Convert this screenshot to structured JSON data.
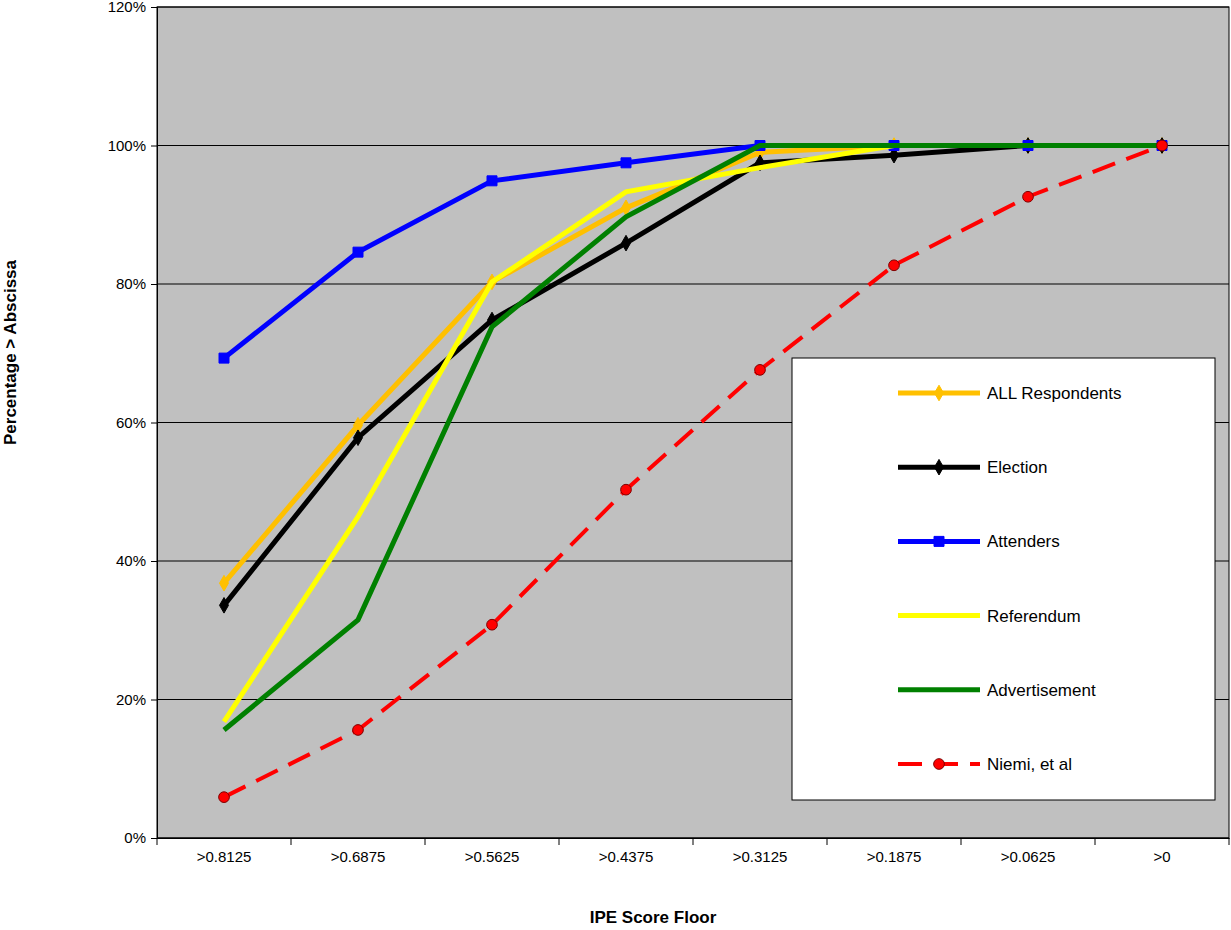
{
  "chart_data": {
    "type": "line",
    "x_label": "IPE Score Floor",
    "y_label": "Percentage > Abscissa",
    "categories": [
      ">0.8125",
      ">0.6875",
      ">0.5625",
      ">0.4375",
      ">0.3125",
      ">0.1875",
      ">0.0625",
      ">0"
    ],
    "series": [
      {
        "name": "ALL Respondents",
        "color": "#FFC000",
        "marker": "diamond",
        "line_style": "solid",
        "values": [
          36.8,
          59.6,
          80.3,
          91,
          99,
          100,
          100,
          100
        ]
      },
      {
        "name": "Election",
        "color": "#000000",
        "marker": "diamond",
        "line_style": "solid",
        "values": [
          33.6,
          57.8,
          74.8,
          85.9,
          97.5,
          98.6,
          100,
          100
        ]
      },
      {
        "name": "Attenders",
        "color": "#0000FF",
        "marker": "square",
        "line_style": "solid",
        "values": [
          69.3,
          84.6,
          94.9,
          97.5,
          100,
          100,
          100,
          100
        ]
      },
      {
        "name": "Referendum",
        "color": "#FFFF00",
        "marker": "none",
        "line_style": "solid",
        "values": [
          16.8,
          46.4,
          80.3,
          93.3,
          96.8,
          100,
          100,
          100
        ]
      },
      {
        "name": "Advertisement",
        "color": "#008000",
        "marker": "none",
        "line_style": "solid",
        "values": [
          15.6,
          31.5,
          73.8,
          89.7,
          100,
          100,
          100,
          100
        ]
      },
      {
        "name": "Niemi, et al",
        "color": "#FF0000",
        "marker": "circle",
        "line_style": "dashed",
        "values": [
          5.9,
          15.6,
          30.8,
          50.3,
          67.6,
          82.7,
          92.6,
          100
        ]
      }
    ],
    "ylim": [
      0,
      120
    ],
    "yticks": [
      {
        "value": 0,
        "label": "0%"
      },
      {
        "value": 20,
        "label": "20%"
      },
      {
        "value": 40,
        "label": "40%"
      },
      {
        "value": 60,
        "label": "60%"
      },
      {
        "value": 80,
        "label": "80%"
      },
      {
        "value": 100,
        "label": "100%"
      },
      {
        "value": 120,
        "label": "120%"
      }
    ],
    "grid": true,
    "legend": "lower right"
  }
}
